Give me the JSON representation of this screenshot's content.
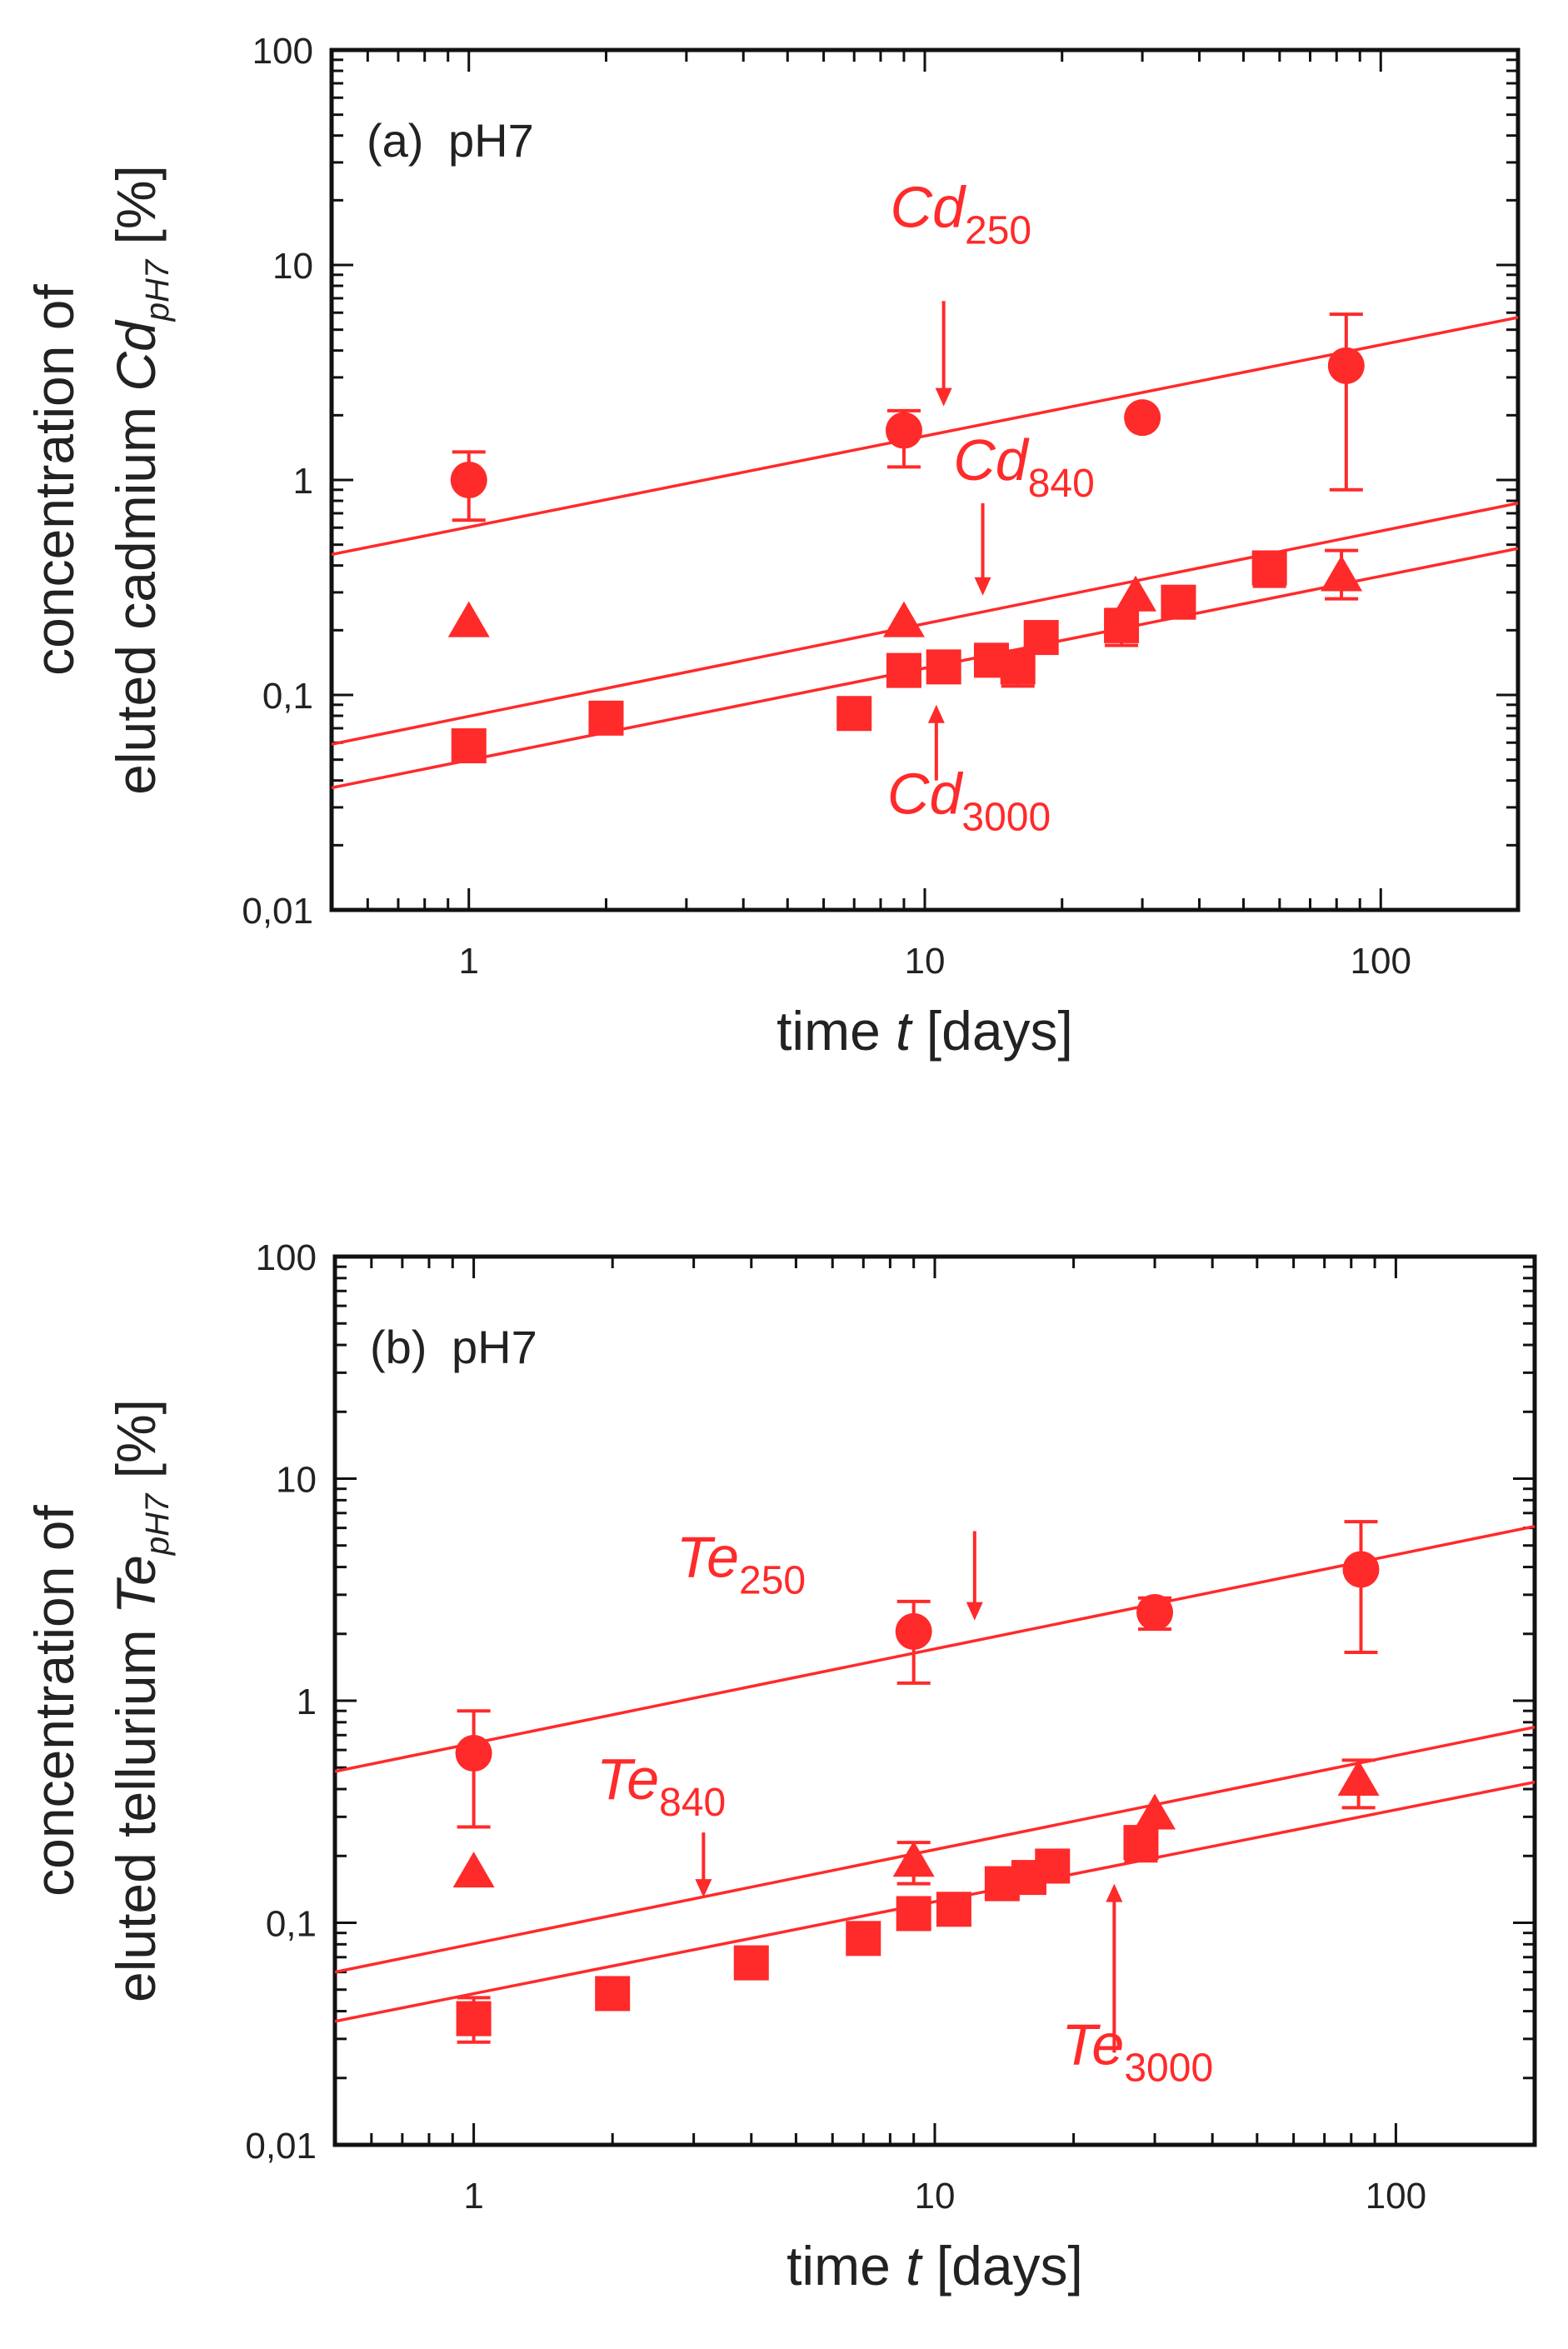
{
  "colors": {
    "series": "#ff2a2a",
    "axis": "#111111",
    "text": "#222222"
  },
  "chart_data": [
    {
      "type": "scatter",
      "panel_label": "(a)",
      "panel_condition": "pH7",
      "xlabel": {
        "pre": "time ",
        "var": "t",
        "post": " [days]"
      },
      "ylabel": {
        "line1": "concentration of",
        "line2_pre": "eluted cadmium ",
        "line2_var": "Cd",
        "line2_sub": "pH7",
        "line2_post": " [%]"
      },
      "xscale": "log",
      "yscale": "log",
      "xlim": [
        0.5,
        200
      ],
      "ylim": [
        0.01,
        100
      ],
      "xticks": [
        {
          "v": 1,
          "label": "1"
        },
        {
          "v": 10,
          "label": "10"
        },
        {
          "v": 100,
          "label": "100"
        }
      ],
      "yticks": [
        {
          "v": 0.01,
          "label": "0,01"
        },
        {
          "v": 0.1,
          "label": "0,1"
        },
        {
          "v": 1,
          "label": "1"
        },
        {
          "v": 10,
          "label": "10"
        },
        {
          "v": 100,
          "label": "100"
        }
      ],
      "series": [
        {
          "name": "Cd250",
          "marker": "circle",
          "fit": [
            [
              0.5,
              0.45
            ],
            [
              200,
              5.7
            ]
          ],
          "points": [
            {
              "x": 1,
              "y": 1.0,
              "lo": 0.65,
              "hi": 1.35
            },
            {
              "x": 9,
              "y": 1.7,
              "lo": 1.15,
              "hi": 2.1
            },
            {
              "x": 30,
              "y": 1.95
            },
            {
              "x": 84,
              "y": 3.4,
              "lo": 0.9,
              "hi": 5.9
            }
          ]
        },
        {
          "name": "Cd840",
          "marker": "triangle",
          "fit": [
            [
              0.5,
              0.059
            ],
            [
              200,
              0.78
            ]
          ],
          "points": [
            {
              "x": 1,
              "y": 0.22
            },
            {
              "x": 9,
              "y": 0.22
            },
            {
              "x": 29,
              "y": 0.29
            },
            {
              "x": 82,
              "y": 0.36,
              "lo": 0.28,
              "hi": 0.47
            }
          ]
        },
        {
          "name": "Cd3000",
          "marker": "square",
          "fit": [
            [
              0.5,
              0.037
            ],
            [
              200,
              0.48
            ]
          ],
          "points": [
            {
              "x": 1,
              "y": 0.058,
              "lo": 0.049,
              "hi": 0.068
            },
            {
              "x": 2,
              "y": 0.078
            },
            {
              "x": 7,
              "y": 0.082
            },
            {
              "x": 9,
              "y": 0.13
            },
            {
              "x": 11,
              "y": 0.135
            },
            {
              "x": 14,
              "y": 0.145
            },
            {
              "x": 16,
              "y": 0.135,
              "lo": 0.11,
              "hi": 0.16
            },
            {
              "x": 18,
              "y": 0.185
            },
            {
              "x": 27,
              "y": 0.21,
              "lo": 0.17,
              "hi": 0.25
            },
            {
              "x": 36,
              "y": 0.27
            },
            {
              "x": 57,
              "y": 0.39,
              "lo": 0.32,
              "hi": 0.45
            }
          ]
        }
      ],
      "annotations": [
        {
          "base": "Cd",
          "sub": "250",
          "text_x": 12,
          "text_y": 15,
          "arrow_x": 11,
          "arrow_from": 6.8,
          "arrow_to": 2.2
        },
        {
          "base": "Cd",
          "sub": "840",
          "text_x": 16.5,
          "text_y": 1.0,
          "arrow_x": 13.4,
          "arrow_from": 0.78,
          "arrow_to": 0.29
        },
        {
          "base": "Cd",
          "sub": "3000",
          "text_x": 12.5,
          "text_y": 0.028,
          "arrow_x": 10.6,
          "arrow_from": 0.04,
          "arrow_to": 0.09
        }
      ]
    },
    {
      "type": "scatter",
      "panel_label": "(b)",
      "panel_condition": "pH7",
      "xlabel": {
        "pre": "time ",
        "var": "t",
        "post": " [days]"
      },
      "ylabel": {
        "line1": "concentration of",
        "line2_pre": "eluted tellurium ",
        "line2_var": "Te",
        "line2_sub": "pH7",
        "line2_post": " [%]"
      },
      "xscale": "log",
      "yscale": "log",
      "xlim": [
        0.5,
        200
      ],
      "ylim": [
        0.01,
        100
      ],
      "xticks": [
        {
          "v": 1,
          "label": "1"
        },
        {
          "v": 10,
          "label": "10"
        },
        {
          "v": 100,
          "label": "100"
        }
      ],
      "yticks": [
        {
          "v": 0.01,
          "label": "0,01"
        },
        {
          "v": 0.1,
          "label": "0,1"
        },
        {
          "v": 1,
          "label": "1"
        },
        {
          "v": 10,
          "label": "10"
        },
        {
          "v": 100,
          "label": "100"
        }
      ],
      "series": [
        {
          "name": "Te250",
          "marker": "circle",
          "fit": [
            [
              0.5,
              0.48
            ],
            [
              200,
              6.1
            ]
          ],
          "points": [
            {
              "x": 1,
              "y": 0.58,
              "lo": 0.27,
              "hi": 0.9
            },
            {
              "x": 9,
              "y": 2.05,
              "lo": 1.2,
              "hi": 2.8
            },
            {
              "x": 30,
              "y": 2.5,
              "lo": 2.1,
              "hi": 2.9
            },
            {
              "x": 84,
              "y": 3.9,
              "lo": 1.65,
              "hi": 6.4
            }
          ]
        },
        {
          "name": "Te840",
          "marker": "triangle",
          "fit": [
            [
              0.5,
              0.06
            ],
            [
              200,
              0.76
            ]
          ],
          "points": [
            {
              "x": 1,
              "y": 0.17
            },
            {
              "x": 9,
              "y": 0.19,
              "lo": 0.15,
              "hi": 0.23
            },
            {
              "x": 30,
              "y": 0.31
            },
            {
              "x": 83,
              "y": 0.44,
              "lo": 0.33,
              "hi": 0.54
            }
          ]
        },
        {
          "name": "Te3000",
          "marker": "square",
          "fit": [
            [
              0.5,
              0.036
            ],
            [
              200,
              0.43
            ]
          ],
          "points": [
            {
              "x": 1,
              "y": 0.037,
              "lo": 0.029,
              "hi": 0.046
            },
            {
              "x": 2,
              "y": 0.048
            },
            {
              "x": 4,
              "y": 0.066
            },
            {
              "x": 7,
              "y": 0.085
            },
            {
              "x": 9,
              "y": 0.11
            },
            {
              "x": 11,
              "y": 0.115
            },
            {
              "x": 14,
              "y": 0.15
            },
            {
              "x": 16,
              "y": 0.16
            },
            {
              "x": 18,
              "y": 0.18
            },
            {
              "x": 28,
              "y": 0.23,
              "lo": 0.19,
              "hi": 0.27
            }
          ]
        }
      ],
      "annotations": [
        {
          "base": "Te",
          "sub": "250",
          "text_x": 3.8,
          "text_y": 3.6,
          "arrow_x": 12.2,
          "arrow_from": 5.8,
          "arrow_to": 2.3
        },
        {
          "base": "Te",
          "sub": "840",
          "text_x": 2.55,
          "text_y": 0.36,
          "arrow_x": 3.15,
          "arrow_from": 0.255,
          "arrow_to": 0.13
        },
        {
          "base": "Te",
          "sub": "3000",
          "text_x": 27.5,
          "text_y": 0.023,
          "arrow_x": 24.5,
          "arrow_from": 0.026,
          "arrow_to": 0.15
        }
      ]
    }
  ]
}
